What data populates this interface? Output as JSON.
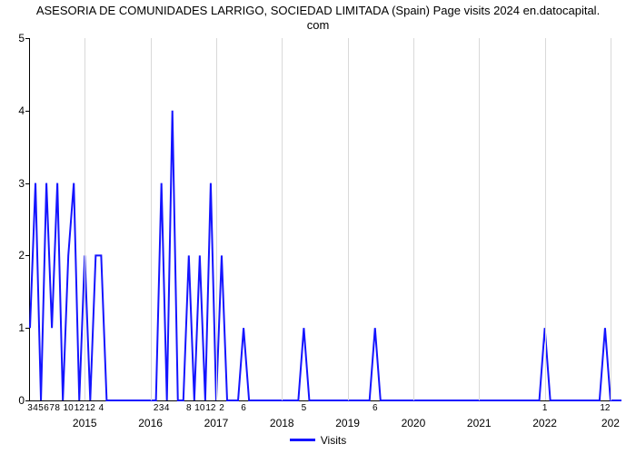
{
  "title_line1": "ASESORIA DE COMUNIDADES LARRIGO, SOCIEDAD LIMITADA (Spain) Page visits 2024 en.datocapital.",
  "title_line2": "com",
  "title_fontsize": 13,
  "chart": {
    "type": "line",
    "background_color": "#ffffff",
    "grid_color": "#d9d9d9",
    "axis_color": "#000000",
    "line_color": "#1414ff",
    "line_width": 2,
    "ylim": [
      0,
      5
    ],
    "ytick_step": 1,
    "yticks": [
      0,
      1,
      2,
      3,
      4,
      5
    ],
    "x_n": 109,
    "major_years": [
      {
        "label": "2015",
        "idx": 10
      },
      {
        "label": "2016",
        "idx": 22
      },
      {
        "label": "2017",
        "idx": 34
      },
      {
        "label": "2018",
        "idx": 46
      },
      {
        "label": "2019",
        "idx": 58
      },
      {
        "label": "2020",
        "idx": 70
      },
      {
        "label": "2021",
        "idx": 82
      },
      {
        "label": "2022",
        "idx": 94
      },
      {
        "label": "202",
        "idx": 106
      }
    ],
    "minor_labels": [
      {
        "label": "3",
        "idx": 0
      },
      {
        "label": "4",
        "idx": 1
      },
      {
        "label": "5",
        "idx": 2
      },
      {
        "label": "6",
        "idx": 3
      },
      {
        "label": "7",
        "idx": 4
      },
      {
        "label": "8",
        "idx": 5
      },
      {
        "label": "10",
        "idx": 7
      },
      {
        "label": "12",
        "idx": 9
      },
      {
        "label": "12",
        "idx": 11
      },
      {
        "label": "4",
        "idx": 13
      },
      {
        "label": "2",
        "idx": 23
      },
      {
        "label": "3",
        "idx": 24
      },
      {
        "label": "4",
        "idx": 25
      },
      {
        "label": "8",
        "idx": 29
      },
      {
        "label": "10",
        "idx": 31
      },
      {
        "label": "12",
        "idx": 33
      },
      {
        "label": "2",
        "idx": 35
      },
      {
        "label": "6",
        "idx": 39
      },
      {
        "label": "5",
        "idx": 50
      },
      {
        "label": "6",
        "idx": 63
      },
      {
        "label": "1",
        "idx": 94
      },
      {
        "label": "12",
        "idx": 105
      }
    ],
    "values": [
      1,
      3,
      0,
      3,
      1,
      3,
      0,
      2,
      3,
      0,
      2,
      0,
      2,
      2,
      0,
      0,
      0,
      0,
      0,
      0,
      0,
      0,
      0,
      0,
      3,
      0,
      4,
      0,
      0,
      2,
      0,
      2,
      0,
      3,
      0,
      2,
      0,
      0,
      0,
      1,
      0,
      0,
      0,
      0,
      0,
      0,
      0,
      0,
      0,
      0,
      1,
      0,
      0,
      0,
      0,
      0,
      0,
      0,
      0,
      0,
      0,
      0,
      0,
      1,
      0,
      0,
      0,
      0,
      0,
      0,
      0,
      0,
      0,
      0,
      0,
      0,
      0,
      0,
      0,
      0,
      0,
      0,
      0,
      0,
      0,
      0,
      0,
      0,
      0,
      0,
      0,
      0,
      0,
      0,
      1,
      0,
      0,
      0,
      0,
      0,
      0,
      0,
      0,
      0,
      0,
      1,
      0,
      0,
      0
    ]
  },
  "legend": {
    "label": "Visits",
    "swatch_color": "#1414ff"
  }
}
